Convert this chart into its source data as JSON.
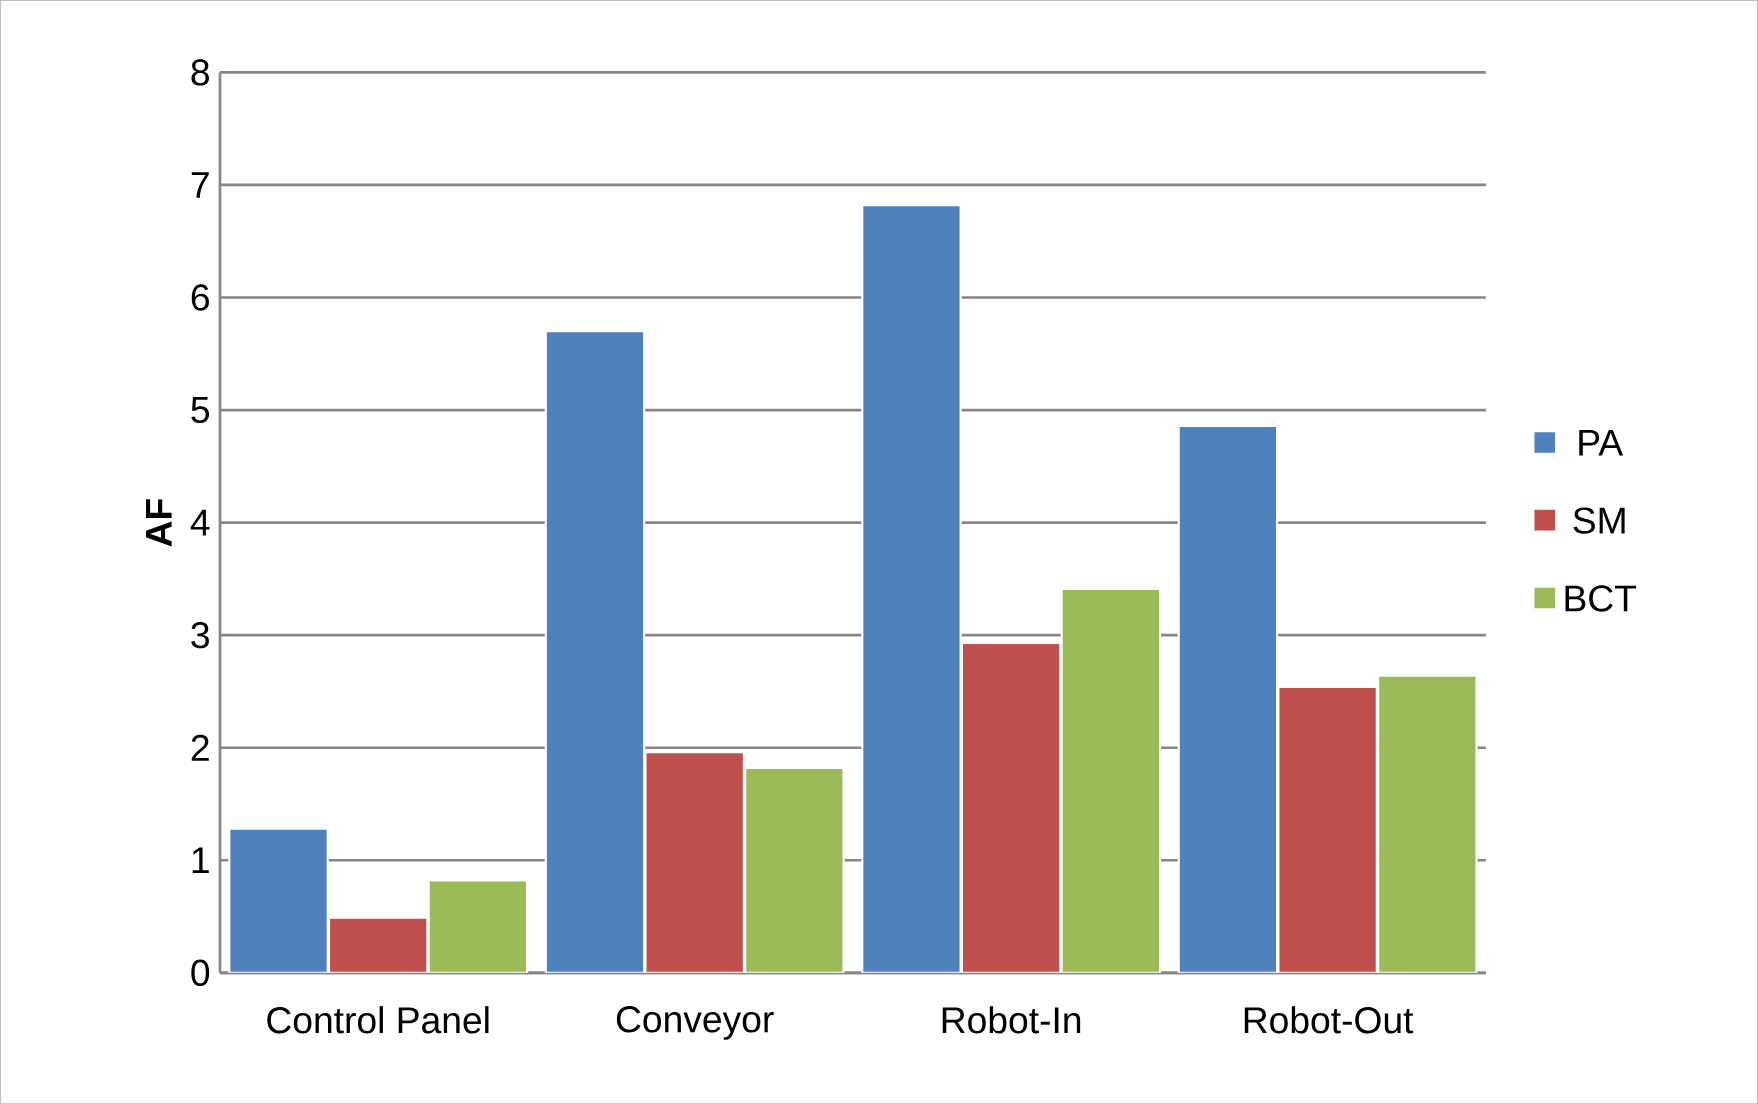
{
  "chart_data": {
    "type": "bar",
    "ylabel": "AF",
    "categories": [
      "Control Panel",
      "Conveyor",
      "Robot-In",
      "Robot-Out"
    ],
    "series": [
      {
        "name": "PA",
        "color": "#4f81bd",
        "values": [
          1.28,
          5.7,
          6.82,
          4.86
        ]
      },
      {
        "name": "SM",
        "color": "#c0504d",
        "values": [
          0.49,
          1.96,
          2.93,
          2.54
        ]
      },
      {
        "name": "BCT",
        "color": "#9bbb59",
        "values": [
          0.82,
          1.82,
          3.41,
          2.64
        ]
      }
    ],
    "ylim": [
      0,
      8
    ],
    "yticks": [
      0,
      1,
      2,
      3,
      4,
      5,
      6,
      7,
      8
    ],
    "grid": "y",
    "legend": "right"
  }
}
